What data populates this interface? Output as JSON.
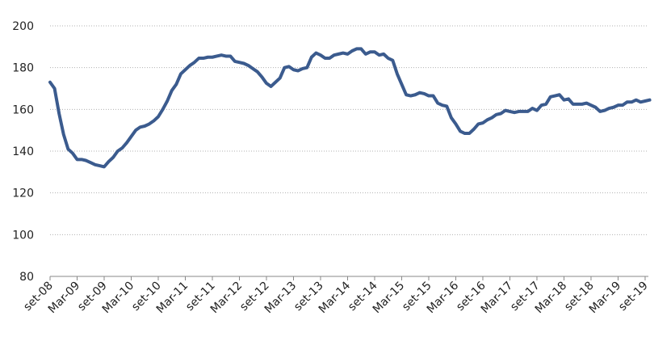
{
  "chart_data": {
    "type": "line",
    "categories": [
      "set-08",
      null,
      null,
      null,
      null,
      null,
      "Mar-09",
      null,
      null,
      null,
      null,
      null,
      "set-09",
      null,
      null,
      null,
      null,
      null,
      "Mar-10",
      null,
      null,
      null,
      null,
      null,
      "set-10",
      null,
      null,
      null,
      null,
      null,
      "Mar-11",
      null,
      null,
      null,
      null,
      null,
      "set-11",
      null,
      null,
      null,
      null,
      null,
      "Mar-12",
      null,
      null,
      null,
      null,
      null,
      "set-12",
      null,
      null,
      null,
      null,
      null,
      "Mar-13",
      null,
      null,
      null,
      null,
      null,
      "set-13",
      null,
      null,
      null,
      null,
      null,
      "Mar-14",
      null,
      null,
      null,
      null,
      null,
      "set-14",
      null,
      null,
      null,
      null,
      null,
      "Mar-15",
      null,
      null,
      null,
      null,
      null,
      "set-15",
      null,
      null,
      null,
      null,
      null,
      "Mar-16",
      null,
      null,
      null,
      null,
      null,
      "set-16",
      null,
      null,
      null,
      null,
      null,
      "Mar-17",
      null,
      null,
      null,
      null,
      null,
      "set-17",
      null,
      null,
      null,
      null,
      null,
      "Mar-18",
      null,
      null,
      null,
      null,
      null,
      "set-18",
      null,
      null,
      null,
      null,
      null,
      "Mar-19",
      null,
      null,
      null,
      null,
      null,
      "set-19",
      null
    ],
    "series": [
      {
        "color": "#3b5b8e",
        "values": [
          173,
          170,
          158,
          148,
          141,
          139,
          136,
          136,
          135.5,
          134.5,
          133.5,
          133,
          132.5,
          135,
          137,
          140,
          141.5,
          144,
          147,
          150,
          151.5,
          152,
          153,
          154.5,
          156.5,
          160,
          164,
          169,
          172,
          177,
          179,
          181,
          182.5,
          184.5,
          184.5,
          185,
          185,
          185.5,
          186,
          185.5,
          185.5,
          183,
          182.5,
          182,
          181,
          179.5,
          178,
          175.5,
          172.5,
          171,
          173,
          175,
          180,
          180.5,
          179,
          178.5,
          179.5,
          180,
          185,
          187,
          186,
          184.5,
          184.5,
          186,
          186.5,
          187,
          186.5,
          188,
          189,
          189,
          186.5,
          187.5,
          187.5,
          186,
          186.5,
          184.5,
          183.5,
          177,
          172,
          167,
          166.5,
          167,
          168,
          167.5,
          166.5,
          166.5,
          163,
          162,
          161.5,
          156,
          153,
          149.5,
          148.5,
          148.5,
          150.5,
          153,
          153.5,
          155,
          156,
          157.5,
          158,
          159.5,
          159,
          158.5,
          159,
          159,
          159,
          160.5,
          159.5,
          162,
          162.5,
          166,
          166.5,
          167,
          164.5,
          165,
          162.5,
          162.5,
          162.5,
          163,
          162,
          161,
          159,
          159.5,
          160.5,
          161,
          162,
          162,
          163.5,
          163.5,
          164.5,
          163.5,
          164,
          164.5
        ]
      }
    ],
    "ylim": [
      80,
      200
    ],
    "yticks": [
      80,
      100,
      120,
      140,
      160,
      180,
      200
    ],
    "grid": true
  }
}
